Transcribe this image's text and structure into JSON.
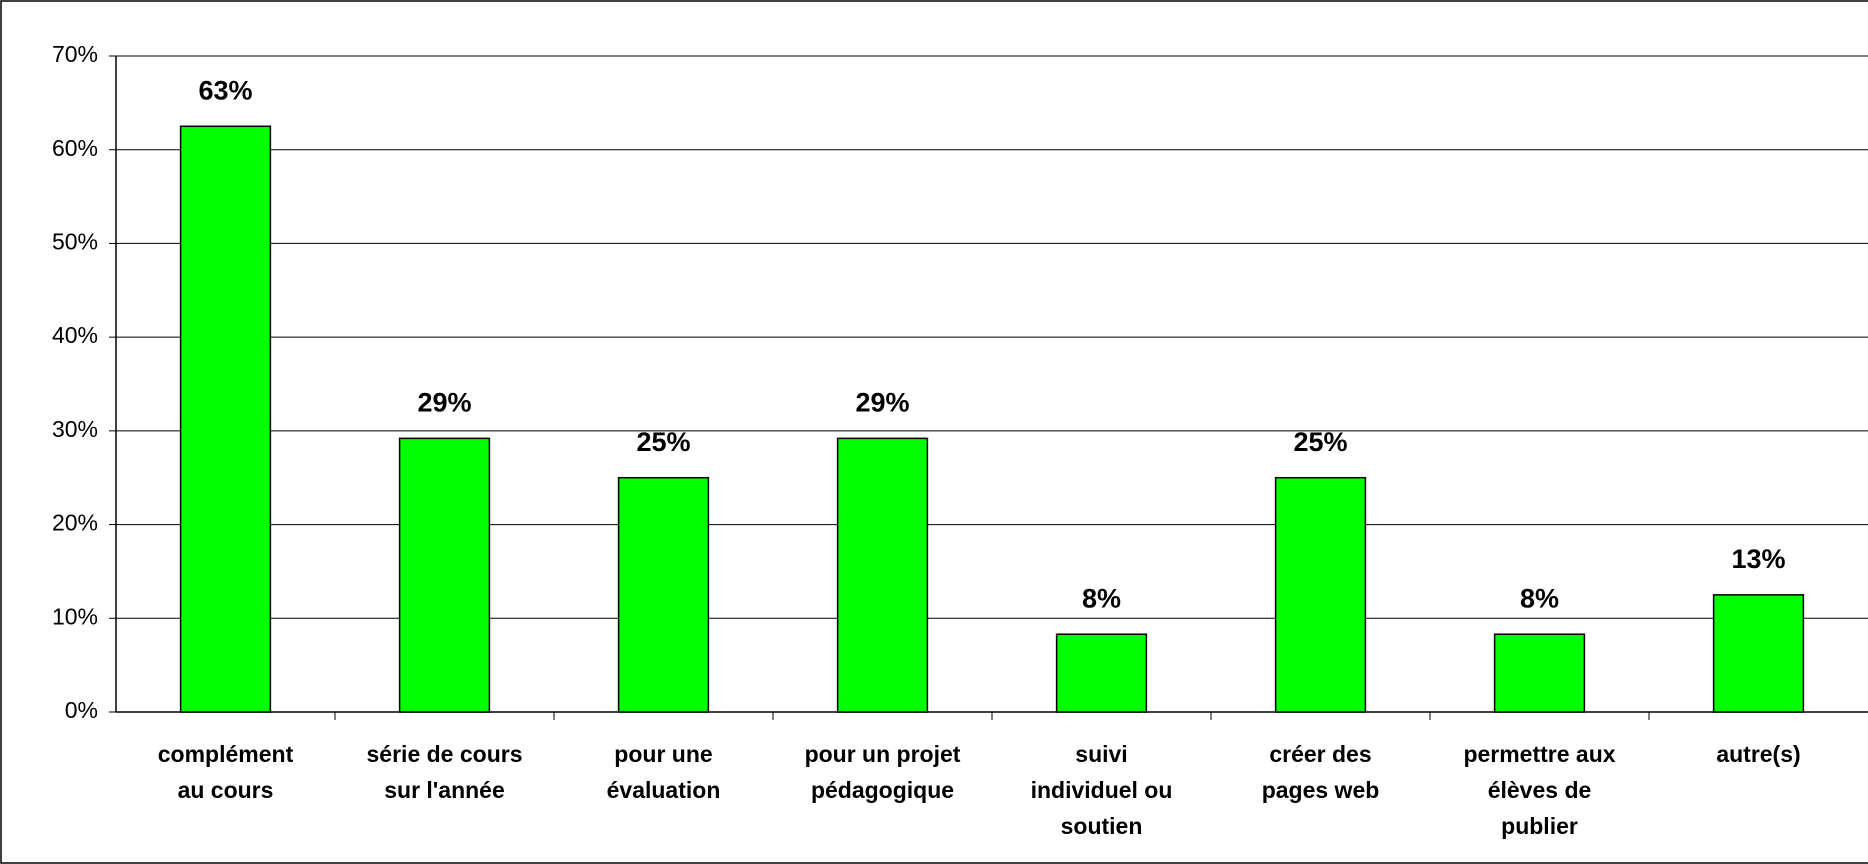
{
  "chart_data": {
    "type": "bar",
    "categories": [
      "complément\nau cours",
      "série de cours\nsur l'année",
      "pour une\névaluation",
      "pour un projet\npédagogique",
      "suivi\nindividuel ou\nsoutien",
      "créer des\npages web",
      "permettre aux\nélèves de\npublier",
      "autre(s)"
    ],
    "values": [
      62.5,
      29.2,
      25,
      29.2,
      8.3,
      25,
      8.3,
      12.5
    ],
    "value_labels": [
      "63%",
      "29%",
      "25%",
      "29%",
      "8%",
      "25%",
      "8%",
      "13%"
    ],
    "color": "#00ff00",
    "ylim": [
      0,
      70
    ],
    "yticks": [
      {
        "value": 0,
        "label": "0%"
      },
      {
        "value": 10,
        "label": "10%"
      },
      {
        "value": 20,
        "label": "20%"
      },
      {
        "value": 30,
        "label": "30%"
      },
      {
        "value": 40,
        "label": "40%"
      },
      {
        "value": 50,
        "label": "50%"
      },
      {
        "value": 60,
        "label": "60%"
      },
      {
        "value": 70,
        "label": "70%"
      }
    ],
    "grid": true
  }
}
